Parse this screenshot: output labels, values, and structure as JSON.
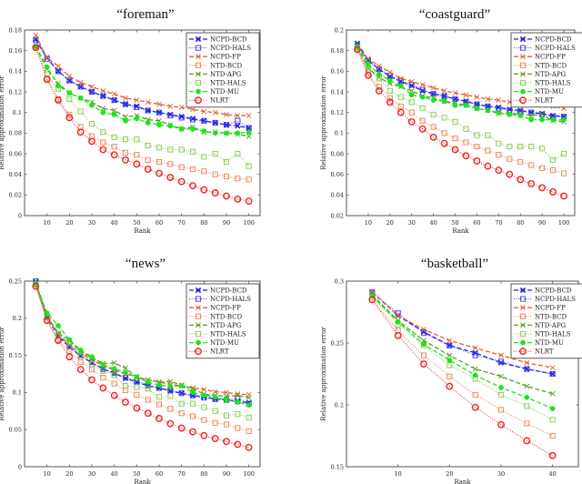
{
  "figure": {
    "legend_entries": [
      "NCPD-BCD",
      "NCPD-HALS",
      "NCPD-FP",
      "NTD-BCD",
      "NTD-APG",
      "NTD-HALS",
      "NTD-MU",
      "NLRT"
    ],
    "series_styles": [
      {
        "name": "NCPD-BCD",
        "color": "#1f1fe8",
        "dash": "dashed",
        "marker": "x-filled"
      },
      {
        "name": "NCPD-HALS",
        "color": "#3a3ae6",
        "dash": "dotted",
        "marker": "square"
      },
      {
        "name": "NCPD-FP",
        "color": "#e0622e",
        "dash": "dashed",
        "marker": "x"
      },
      {
        "name": "NTD-BCD",
        "color": "#ef7f4f",
        "dash": "dotted",
        "marker": "square"
      },
      {
        "name": "NTD-APG",
        "color": "#58a020",
        "dash": "dashed",
        "marker": "x"
      },
      {
        "name": "NTD-HALS",
        "color": "#86c94a",
        "dash": "dotted",
        "marker": "square"
      },
      {
        "name": "NTD-MU",
        "color": "#19e619",
        "dash": "dashed",
        "marker": "dot"
      },
      {
        "name": "NLRT",
        "color": "#f02020",
        "dash": "dotted",
        "marker": "circle"
      }
    ]
  },
  "chart_data": [
    {
      "type": "line",
      "title": "“foreman”",
      "xlabel": "Rank",
      "ylabel": "Relative approximation error",
      "xlim": [
        0,
        105
      ],
      "ylim": [
        0,
        0.18
      ],
      "xticks": [
        10,
        20,
        30,
        40,
        50,
        60,
        70,
        80,
        90,
        100
      ],
      "yticks": [
        0,
        0.02,
        0.04,
        0.06,
        0.08,
        0.1,
        0.12,
        0.14,
        0.16,
        0.18
      ],
      "ytick_labels": [
        "0",
        "0.02",
        "0.04",
        "0.06",
        "0.08",
        "0.1",
        "0.12",
        "0.14",
        "0.16",
        "0.18"
      ],
      "legend": "top-right",
      "grid": false,
      "x": [
        5,
        10,
        15,
        20,
        25,
        30,
        35,
        40,
        45,
        50,
        55,
        60,
        65,
        70,
        75,
        80,
        85,
        90,
        95,
        100
      ],
      "series": [
        {
          "name": "NCPD-BCD",
          "values": [
            0.171,
            0.153,
            0.14,
            0.131,
            0.125,
            0.12,
            0.116,
            0.112,
            0.108,
            0.106,
            0.102,
            0.1,
            0.098,
            0.096,
            0.094,
            0.092,
            0.09,
            0.088,
            0.087,
            0.085
          ]
        },
        {
          "name": "NCPD-HALS",
          "values": [
            0.17,
            0.152,
            0.14,
            0.131,
            0.125,
            0.12,
            0.116,
            0.112,
            0.108,
            0.105,
            0.102,
            0.1,
            0.097,
            0.095,
            0.093,
            0.092,
            0.09,
            0.088,
            0.092,
            0.085
          ]
        },
        {
          "name": "NCPD-FP",
          "values": [
            0.175,
            0.153,
            0.145,
            0.135,
            0.129,
            0.125,
            0.121,
            0.118,
            0.114,
            0.112,
            0.11,
            0.108,
            0.106,
            0.105,
            0.103,
            0.101,
            0.1,
            0.098,
            0.097,
            0.097
          ]
        },
        {
          "name": "NTD-BCD",
          "values": [
            0.163,
            0.133,
            0.113,
            0.098,
            0.086,
            0.077,
            0.071,
            0.067,
            0.061,
            0.059,
            0.054,
            0.052,
            0.05,
            0.047,
            0.045,
            0.043,
            0.04,
            0.038,
            0.036,
            0.035
          ]
        },
        {
          "name": "NTD-APG",
          "values": [
            0.164,
            0.142,
            0.128,
            0.119,
            0.114,
            0.11,
            0.104,
            0.102,
            0.096,
            0.097,
            0.093,
            0.092,
            0.088,
            0.084,
            0.086,
            0.081,
            0.081,
            0.08,
            0.079,
            0.077
          ]
        },
        {
          "name": "NTD-HALS",
          "values": [
            0.163,
            0.137,
            0.123,
            0.113,
            0.101,
            0.089,
            0.081,
            0.076,
            0.074,
            0.074,
            0.068,
            0.066,
            0.064,
            0.064,
            0.062,
            0.057,
            0.06,
            0.052,
            0.06,
            0.048
          ]
        },
        {
          "name": "NTD-MU",
          "values": [
            0.164,
            0.144,
            0.126,
            0.119,
            0.114,
            0.107,
            0.1,
            0.098,
            0.092,
            0.094,
            0.09,
            0.088,
            0.087,
            0.084,
            0.084,
            0.082,
            0.08,
            0.08,
            0.08,
            0.081
          ]
        },
        {
          "name": "NLRT",
          "values": [
            0.163,
            0.132,
            0.112,
            0.095,
            0.081,
            0.072,
            0.064,
            0.059,
            0.054,
            0.05,
            0.045,
            0.041,
            0.037,
            0.033,
            0.029,
            0.025,
            0.022,
            0.019,
            0.016,
            0.014
          ]
        }
      ]
    },
    {
      "type": "line",
      "title": "“coastguard”",
      "xlabel": "Rank",
      "ylabel": "Relative approximation error",
      "xlim": [
        0,
        105
      ],
      "ylim": [
        0.02,
        0.2
      ],
      "xticks": [
        10,
        20,
        30,
        40,
        50,
        60,
        70,
        80,
        90,
        100
      ],
      "yticks": [
        0.02,
        0.04,
        0.06,
        0.08,
        0.1,
        0.12,
        0.14,
        0.16,
        0.18,
        0.2
      ],
      "ytick_labels": [
        "0.02",
        "0.04",
        "0.06",
        "0.08",
        "0.1",
        "0.12",
        "0.14",
        "0.16",
        "0.18",
        "0.2"
      ],
      "legend": "top-right",
      "grid": false,
      "x": [
        5,
        10,
        15,
        20,
        25,
        30,
        35,
        40,
        45,
        50,
        55,
        60,
        65,
        70,
        75,
        80,
        85,
        90,
        95,
        100
      ],
      "series": [
        {
          "name": "NCPD-BCD",
          "values": [
            0.187,
            0.171,
            0.162,
            0.155,
            0.15,
            0.146,
            0.141,
            0.138,
            0.136,
            0.133,
            0.131,
            0.128,
            0.126,
            0.125,
            0.123,
            0.122,
            0.12,
            0.119,
            0.117,
            0.116
          ]
        },
        {
          "name": "NCPD-HALS",
          "values": [
            0.185,
            0.17,
            0.162,
            0.156,
            0.151,
            0.147,
            0.142,
            0.138,
            0.136,
            0.133,
            0.13,
            0.128,
            0.126,
            0.124,
            0.122,
            0.121,
            0.12,
            0.118,
            0.116,
            0.116
          ]
        },
        {
          "name": "NCPD-FP",
          "values": [
            0.183,
            0.172,
            0.165,
            0.159,
            0.153,
            0.15,
            0.147,
            0.144,
            0.141,
            0.139,
            0.137,
            0.135,
            0.133,
            0.132,
            0.13,
            0.129,
            0.128,
            0.127,
            0.126,
            0.124
          ]
        },
        {
          "name": "NTD-BCD",
          "values": [
            0.182,
            0.158,
            0.145,
            0.134,
            0.126,
            0.12,
            0.112,
            0.106,
            0.1,
            0.095,
            0.091,
            0.087,
            0.083,
            0.079,
            0.075,
            0.072,
            0.069,
            0.066,
            0.064,
            0.061
          ]
        },
        {
          "name": "NTD-APG",
          "values": [
            0.183,
            0.163,
            0.154,
            0.148,
            0.145,
            0.141,
            0.136,
            0.134,
            0.131,
            0.129,
            0.127,
            0.124,
            0.122,
            0.119,
            0.119,
            0.119,
            0.117,
            0.118,
            0.112,
            0.111
          ]
        },
        {
          "name": "NTD-HALS",
          "values": [
            0.183,
            0.161,
            0.153,
            0.141,
            0.135,
            0.13,
            0.124,
            0.118,
            0.115,
            0.111,
            0.104,
            0.098,
            0.098,
            0.09,
            0.087,
            0.087,
            0.087,
            0.085,
            0.074,
            0.08
          ]
        },
        {
          "name": "NTD-MU",
          "values": [
            0.184,
            0.167,
            0.157,
            0.151,
            0.146,
            0.137,
            0.135,
            0.132,
            0.131,
            0.127,
            0.127,
            0.124,
            0.122,
            0.12,
            0.118,
            0.117,
            0.113,
            0.113,
            0.113,
            0.113
          ]
        },
        {
          "name": "NLRT",
          "values": [
            0.181,
            0.156,
            0.141,
            0.13,
            0.12,
            0.111,
            0.104,
            0.096,
            0.09,
            0.084,
            0.078,
            0.073,
            0.068,
            0.064,
            0.06,
            0.055,
            0.051,
            0.047,
            0.043,
            0.039
          ]
        }
      ]
    },
    {
      "type": "line",
      "title": "“news”",
      "xlabel": "Rank",
      "ylabel": "Relative approximation error",
      "xlim": [
        0,
        105
      ],
      "ylim": [
        0,
        0.25
      ],
      "xticks": [
        10,
        20,
        30,
        40,
        50,
        60,
        70,
        80,
        90,
        100
      ],
      "yticks": [
        0,
        0.05,
        0.1,
        0.15,
        0.2,
        0.25
      ],
      "ytick_labels": [
        "0",
        "0.05",
        "0.1",
        "0.15",
        "0.2",
        "0.25"
      ],
      "legend": "top-right",
      "grid": false,
      "x": [
        5,
        10,
        15,
        20,
        25,
        30,
        35,
        40,
        45,
        50,
        55,
        60,
        65,
        70,
        75,
        80,
        85,
        90,
        95,
        100
      ],
      "series": [
        {
          "name": "NCPD-BCD",
          "values": [
            0.249,
            0.201,
            0.176,
            0.161,
            0.149,
            0.14,
            0.132,
            0.126,
            0.119,
            0.114,
            0.109,
            0.106,
            0.102,
            0.099,
            0.096,
            0.094,
            0.091,
            0.09,
            0.088,
            0.086
          ]
        },
        {
          "name": "NCPD-HALS",
          "values": [
            0.25,
            0.202,
            0.178,
            0.162,
            0.15,
            0.141,
            0.131,
            0.126,
            0.12,
            0.115,
            0.11,
            0.106,
            0.103,
            0.099,
            0.096,
            0.093,
            0.091,
            0.09,
            0.092,
            0.085
          ]
        },
        {
          "name": "NCPD-FP",
          "values": [
            0.246,
            0.203,
            0.179,
            0.164,
            0.153,
            0.144,
            0.136,
            0.13,
            0.125,
            0.121,
            0.117,
            0.114,
            0.111,
            0.109,
            0.106,
            0.104,
            0.101,
            0.1,
            0.098,
            0.097
          ]
        },
        {
          "name": "NTD-BCD",
          "values": [
            0.245,
            0.197,
            0.171,
            0.156,
            0.141,
            0.131,
            0.12,
            0.112,
            0.103,
            0.097,
            0.09,
            0.084,
            0.078,
            0.072,
            0.068,
            0.063,
            0.059,
            0.057,
            0.052,
            0.048
          ]
        },
        {
          "name": "NTD-APG",
          "values": [
            0.246,
            0.203,
            0.18,
            0.17,
            0.155,
            0.147,
            0.139,
            0.14,
            0.133,
            0.12,
            0.117,
            0.114,
            0.115,
            0.11,
            0.105,
            0.098,
            0.096,
            0.095,
            0.096,
            0.093
          ]
        },
        {
          "name": "NTD-HALS",
          "values": [
            0.246,
            0.201,
            0.177,
            0.167,
            0.15,
            0.138,
            0.129,
            0.123,
            0.109,
            0.107,
            0.105,
            0.094,
            0.095,
            0.085,
            0.085,
            0.08,
            0.075,
            0.069,
            0.071,
            0.066
          ]
        },
        {
          "name": "NTD-MU",
          "values": [
            0.247,
            0.207,
            0.19,
            0.171,
            0.157,
            0.148,
            0.137,
            0.132,
            0.127,
            0.121,
            0.114,
            0.11,
            0.108,
            0.109,
            0.1,
            0.096,
            0.094,
            0.09,
            0.087,
            0.083
          ]
        },
        {
          "name": "NLRT",
          "values": [
            0.243,
            0.197,
            0.17,
            0.148,
            0.131,
            0.117,
            0.106,
            0.096,
            0.087,
            0.079,
            0.072,
            0.065,
            0.058,
            0.052,
            0.047,
            0.042,
            0.038,
            0.034,
            0.03,
            0.026
          ]
        }
      ]
    },
    {
      "type": "line",
      "title": "“basketball”",
      "xlabel": "Rank",
      "ylabel": "Relative approximation error",
      "xlim": [
        0,
        45
      ],
      "ylim": [
        0.15,
        0.3
      ],
      "xticks": [
        10,
        20,
        30,
        40
      ],
      "yticks": [
        0.15,
        0.2,
        0.25,
        0.3
      ],
      "ytick_labels": [
        "0.15",
        "0.2",
        "0.25",
        "0.3"
      ],
      "legend": "top-right",
      "grid": false,
      "x": [
        5,
        10,
        15,
        20,
        25,
        30,
        35,
        40
      ],
      "series": [
        {
          "name": "NCPD-BCD",
          "values": [
            0.291,
            0.272,
            0.259,
            0.248,
            0.242,
            0.234,
            0.229,
            0.225
          ]
        },
        {
          "name": "NCPD-HALS",
          "values": [
            0.291,
            0.274,
            0.258,
            0.248,
            0.24,
            0.235,
            0.229,
            0.225
          ]
        },
        {
          "name": "NCPD-FP",
          "values": [
            0.291,
            0.272,
            0.261,
            0.252,
            0.246,
            0.24,
            0.234,
            0.23
          ]
        },
        {
          "name": "NTD-BCD",
          "values": [
            0.285,
            0.26,
            0.24,
            0.223,
            0.208,
            0.196,
            0.185,
            0.175
          ]
        },
        {
          "name": "NTD-APG",
          "values": [
            0.289,
            0.268,
            0.252,
            0.24,
            0.229,
            0.223,
            0.215,
            0.209
          ]
        },
        {
          "name": "NTD-HALS",
          "values": [
            0.287,
            0.265,
            0.248,
            0.232,
            0.221,
            0.208,
            0.199,
            0.188
          ]
        },
        {
          "name": "NTD-MU",
          "values": [
            0.288,
            0.267,
            0.249,
            0.236,
            0.224,
            0.214,
            0.206,
            0.197
          ]
        },
        {
          "name": "NLRT",
          "values": [
            0.285,
            0.256,
            0.233,
            0.215,
            0.198,
            0.184,
            0.171,
            0.159
          ]
        }
      ]
    }
  ]
}
